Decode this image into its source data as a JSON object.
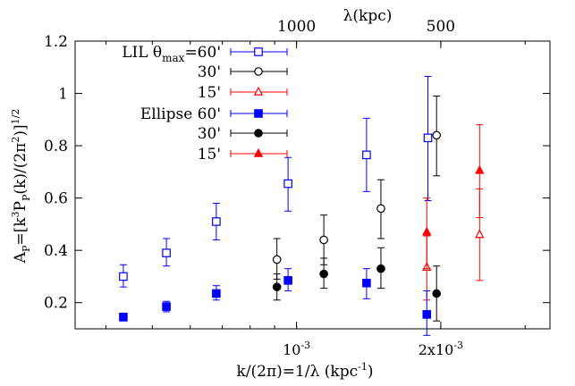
{
  "chart_data": {
    "type": "scatter",
    "x_scale": "log",
    "y_scale": "linear",
    "xlim": [
      0.000345,
      0.00338
    ],
    "ylim": [
      0.1,
      1.2
    ],
    "ylabel_parts": [
      "A",
      "P",
      "=[k",
      "3",
      "P",
      "P",
      "(k)/(2π",
      "2",
      ")]",
      "1/2"
    ],
    "xlabel_parts": [
      "k/(2π)=1/λ (kpc",
      "-1",
      ")"
    ],
    "top_axis_label": "λ(kpc)",
    "top_ticks": [
      {
        "x": 0.001,
        "label": "1000"
      },
      {
        "x": 0.002,
        "label": "500"
      }
    ],
    "bottom_ticks": [
      {
        "x": 0.001,
        "label_base": "10",
        "label_sup": "-3"
      },
      {
        "x": 0.002,
        "label_base": "2x10",
        "label_sup": "-3"
      }
    ],
    "y_ticks": [
      {
        "y": 0.2,
        "label": "0.2"
      },
      {
        "y": 0.4,
        "label": "0.4"
      },
      {
        "y": 0.6,
        "label": "0.6"
      },
      {
        "y": 0.8,
        "label": "0.8"
      },
      {
        "y": 1.0,
        "label": "1"
      },
      {
        "y": 1.2,
        "label": "1.2"
      }
    ],
    "series": [
      {
        "name": "LIL θmax=60'",
        "legend_label": "LIL θ",
        "legend_sub": "max",
        "legend_tail": "=60'",
        "color": "#0000ff",
        "marker": "square-open",
        "points": [
          {
            "x": 0.000435,
            "y": 0.3,
            "lo": 0.26,
            "hi": 0.345
          },
          {
            "x": 0.000535,
            "y": 0.39,
            "lo": 0.34,
            "hi": 0.445
          },
          {
            "x": 0.00068,
            "y": 0.51,
            "lo": 0.44,
            "hi": 0.58
          },
          {
            "x": 0.00096,
            "y": 0.655,
            "lo": 0.55,
            "hi": 0.755
          },
          {
            "x": 0.0014,
            "y": 0.765,
            "lo": 0.625,
            "hi": 0.905
          },
          {
            "x": 0.00188,
            "y": 0.83,
            "lo": 0.59,
            "hi": 1.065
          }
        ]
      },
      {
        "name": "30'",
        "color": "#000000",
        "marker": "circle-open",
        "points": [
          {
            "x": 0.00091,
            "y": 0.365,
            "lo": 0.29,
            "hi": 0.445
          },
          {
            "x": 0.00114,
            "y": 0.44,
            "lo": 0.345,
            "hi": 0.535
          },
          {
            "x": 0.0015,
            "y": 0.56,
            "lo": 0.445,
            "hi": 0.67
          },
          {
            "x": 0.00196,
            "y": 0.84,
            "lo": 0.685,
            "hi": 0.99
          }
        ]
      },
      {
        "name": "15'",
        "color": "#ff0000",
        "marker": "triangle-open",
        "points": [
          {
            "x": 0.00187,
            "y": 0.335,
            "lo": 0.21,
            "hi": 0.455
          },
          {
            "x": 0.00241,
            "y": 0.46,
            "lo": 0.285,
            "hi": 0.635
          }
        ]
      },
      {
        "name": "Ellipse 60'",
        "color": "#0000ff",
        "marker": "square-filled",
        "points": [
          {
            "x": 0.000435,
            "y": 0.145,
            "lo": 0.13,
            "hi": 0.16
          },
          {
            "x": 0.000535,
            "y": 0.185,
            "lo": 0.165,
            "hi": 0.205
          },
          {
            "x": 0.00068,
            "y": 0.235,
            "lo": 0.21,
            "hi": 0.265
          },
          {
            "x": 0.00096,
            "y": 0.285,
            "lo": 0.245,
            "hi": 0.33
          },
          {
            "x": 0.0014,
            "y": 0.275,
            "lo": 0.215,
            "hi": 0.33
          },
          {
            "x": 0.00187,
            "y": 0.155,
            "lo": 0.075,
            "hi": 0.245
          }
        ]
      },
      {
        "name": "30'",
        "color": "#000000",
        "marker": "circle-filled",
        "points": [
          {
            "x": 0.00091,
            "y": 0.26,
            "lo": 0.21,
            "hi": 0.31
          },
          {
            "x": 0.00114,
            "y": 0.31,
            "lo": 0.255,
            "hi": 0.37
          },
          {
            "x": 0.0015,
            "y": 0.33,
            "lo": 0.255,
            "hi": 0.41
          },
          {
            "x": 0.00196,
            "y": 0.235,
            "lo": 0.13,
            "hi": 0.34
          }
        ]
      },
      {
        "name": "15'",
        "color": "#ff0000",
        "marker": "triangle-filled",
        "points": [
          {
            "x": 0.00187,
            "y": 0.47,
            "lo": 0.33,
            "hi": 0.6
          },
          {
            "x": 0.00241,
            "y": 0.705,
            "lo": 0.525,
            "hi": 0.88
          }
        ]
      }
    ],
    "legend_position": "top-left",
    "grid": false
  }
}
